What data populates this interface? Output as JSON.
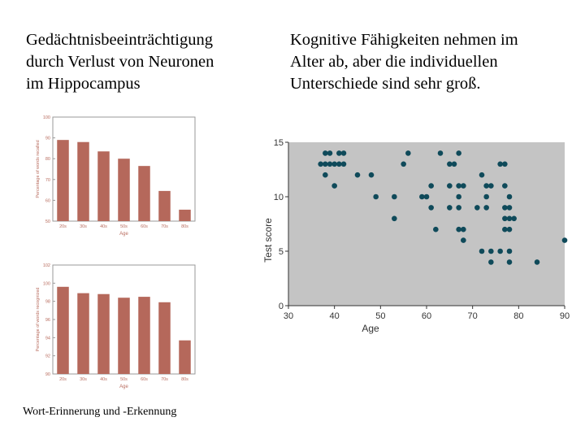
{
  "heading_left": {
    "lines": [
      "Gedächtnisbeeinträchtigung",
      "durch Verlust von Neuronen",
      "im Hippocampus"
    ]
  },
  "heading_right": {
    "lines": [
      "Kognitive Fähigkeiten nehmen im",
      "Alter ab, aber die individuellen",
      "Unterschiede sind sehr groß."
    ]
  },
  "caption": "Wort-Erinnerung und -Erkennung",
  "colors": {
    "bar_fill": "#b5685b",
    "bar_panel_bg": "#ffffff",
    "bar_axis_text": "#b86b5d",
    "scatter_bg": "#c4c4c4",
    "scatter_point": "#0f4a5a",
    "scatter_axis": "#333333"
  },
  "chart_data": [
    {
      "type": "bar",
      "categories": [
        "20s",
        "30s",
        "40s",
        "50s",
        "60s",
        "70s",
        "80s"
      ],
      "values": [
        89,
        88,
        83.5,
        80,
        76.5,
        64.5,
        55.5
      ],
      "ylim": [
        50,
        100
      ],
      "yticks": [
        50,
        60,
        70,
        80,
        90,
        100
      ],
      "xlabel": "Age",
      "ylabel": "Percentage of words recalled",
      "grid": false
    },
    {
      "type": "bar",
      "categories": [
        "20s",
        "30s",
        "40s",
        "50s",
        "60s",
        "70s",
        "80s"
      ],
      "values": [
        99.6,
        98.9,
        98.8,
        98.4,
        98.5,
        97.9,
        93.7
      ],
      "ylim": [
        90,
        102
      ],
      "yticks": [
        90,
        92,
        94,
        96,
        98,
        100,
        102
      ],
      "xlabel": "Age",
      "ylabel": "Percentage of words recognized",
      "grid": false
    },
    {
      "type": "scatter",
      "xlabel": "Age",
      "ylabel": "Test score",
      "xlim": [
        30,
        90
      ],
      "ylim": [
        0,
        15
      ],
      "xticks": [
        30,
        40,
        50,
        60,
        70,
        80,
        90
      ],
      "yticks": [
        0,
        5,
        10,
        15
      ],
      "grid": false,
      "points": [
        [
          37,
          13
        ],
        [
          38,
          14
        ],
        [
          39,
          14
        ],
        [
          41,
          14
        ],
        [
          42,
          14
        ],
        [
          38,
          13
        ],
        [
          40,
          13
        ],
        [
          41,
          13
        ],
        [
          42,
          13
        ],
        [
          39,
          13
        ],
        [
          38,
          12
        ],
        [
          40,
          11
        ],
        [
          45,
          12
        ],
        [
          48,
          12
        ],
        [
          49,
          10
        ],
        [
          53,
          10
        ],
        [
          53,
          8
        ],
        [
          55,
          13
        ],
        [
          56,
          14
        ],
        [
          59,
          10
        ],
        [
          60,
          10
        ],
        [
          61,
          9
        ],
        [
          61,
          11
        ],
        [
          62,
          7
        ],
        [
          63,
          14
        ],
        [
          65,
          13
        ],
        [
          66,
          13
        ],
        [
          65,
          11
        ],
        [
          65,
          9
        ],
        [
          67,
          14
        ],
        [
          67,
          11
        ],
        [
          67,
          10
        ],
        [
          68,
          11
        ],
        [
          67,
          9
        ],
        [
          67,
          7
        ],
        [
          68,
          7
        ],
        [
          68,
          6
        ],
        [
          71,
          9
        ],
        [
          72,
          12
        ],
        [
          73,
          11
        ],
        [
          74,
          11
        ],
        [
          73,
          10
        ],
        [
          73,
          9
        ],
        [
          72,
          5
        ],
        [
          74,
          5
        ],
        [
          74,
          4
        ],
        [
          76,
          13
        ],
        [
          77,
          13
        ],
        [
          77,
          11
        ],
        [
          77,
          9
        ],
        [
          78,
          10
        ],
        [
          77,
          8
        ],
        [
          78,
          8
        ],
        [
          78,
          9
        ],
        [
          79,
          8
        ],
        [
          78,
          7
        ],
        [
          77,
          7
        ],
        [
          76,
          5
        ],
        [
          78,
          5
        ],
        [
          78,
          4
        ],
        [
          84,
          4
        ],
        [
          90,
          6
        ]
      ]
    }
  ]
}
